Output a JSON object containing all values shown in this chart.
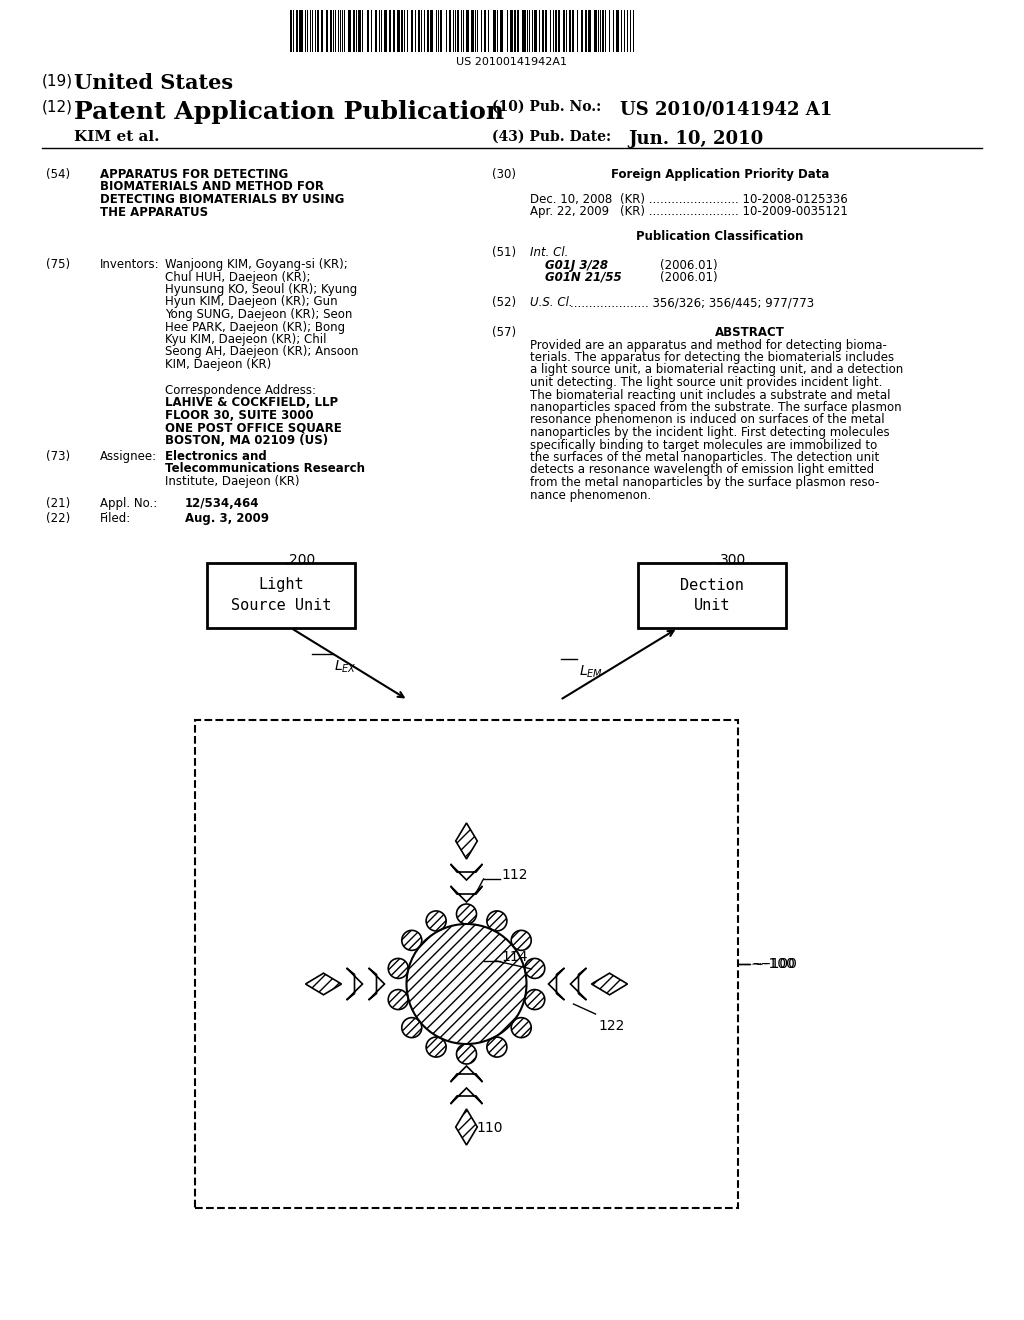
{
  "bg_color": "#ffffff",
  "barcode_text": "US 20100141942A1",
  "title_19": "(19)",
  "title_19_bold": "United States",
  "title_12": "(12)",
  "title_12_bold": "Patent Application Publication",
  "pub_no_label": "(10) Pub. No.:",
  "pub_no_value": "US 2010/0141942 A1",
  "kim_etal": "KIM et al.",
  "pub_date_label": "(43) Pub. Date:",
  "pub_date_value": "Jun. 10, 2010",
  "section54_num": "(54)",
  "section54_title": "APPARATUS FOR DETECTING\nBIOMATERIALS AND METHOD FOR\nDETECTING BIOMATERIALS BY USING\nTHE APPARATUS",
  "section75_num": "(75)",
  "section75_label": "Inventors:",
  "section75_lines": [
    "Wanjoong KIM, Goyang-si (KR);",
    "Chul HUH, Daejeon (KR);",
    "Hyunsung KO, Seoul (KR); Kyung",
    "Hyun KIM, Daejeon (KR); Gun",
    "Yong SUNG, Daejeon (KR); Seon",
    "Hee PARK, Daejeon (KR); Bong",
    "Kyu KIM, Daejeon (KR); Chil",
    "Seong AH, Daejeon (KR); Ansoon",
    "KIM, Daejeon (KR)"
  ],
  "corr_label": "Correspondence Address:",
  "corr_lines": [
    "LAHIVE & COCKFIELD, LLP",
    "FLOOR 30, SUITE 3000",
    "ONE POST OFFICE SQUARE",
    "BOSTON, MA 02109 (US)"
  ],
  "section73_num": "(73)",
  "section73_label": "Assignee:",
  "section73_lines": [
    "Electronics and",
    "Telecommunications Research",
    "Institute, Daejeon (KR)"
  ],
  "section21_num": "(21)",
  "section21_label": "Appl. No.:",
  "section21_value": "12/534,464",
  "section22_num": "(22)",
  "section22_label": "Filed:",
  "section22_value": "Aug. 3, 2009",
  "section30_num": "(30)",
  "section30_title": "Foreign Application Priority Data",
  "priority1_date": "Dec. 10, 2008",
  "priority1_country": "    (KR) ........................ 10-2008-0125336",
  "priority2_date": "Apr. 22, 2009",
  "priority2_country": "    (KR) ........................ 10-2009-0035121",
  "pub_class_title": "Publication Classification",
  "section51_num": "(51)",
  "section51_label": "Int. Cl.",
  "class1": "G01J 3/28",
  "class1_year": "          (2006.01)",
  "class2": "G01N 21/55",
  "class2_year": "          (2006.01)",
  "section52_num": "(52)",
  "section52_label": "U.S. Cl.",
  "section52_value": "..................... 356/326; 356/445; 977/773",
  "section57_num": "(57)",
  "section57_title": "ABSTRACT",
  "abstract_lines": [
    "Provided are an apparatus and method for detecting bioma-",
    "terials. The apparatus for detecting the biomaterials includes",
    "a light source unit, a biomaterial reacting unit, and a detection",
    "unit detecting. The light source unit provides incident light.",
    "The biomaterial reacting unit includes a substrate and metal",
    "nanoparticles spaced from the substrate. The surface plasmon",
    "resonance phenomenon is induced on surfaces of the metal",
    "nanoparticles by the incident light. First detecting molecules",
    "specifically binding to target molecules are immobilized to",
    "the surfaces of the metal nanoparticles. The detection unit",
    "detects a resonance wavelength of emission light emitted",
    "from the metal nanoparticles by the surface plasmon reso-",
    "nance phenomenon."
  ],
  "diagram_label_200": "200",
  "diagram_label_300": "300",
  "diagram_box_left": "Light\nSource Unit",
  "diagram_box_right": "Dection\nUnit",
  "diagram_label_100": "100",
  "diagram_label_112": "112",
  "diagram_label_114": "114",
  "diagram_label_110": "110",
  "diagram_label_122": "122"
}
